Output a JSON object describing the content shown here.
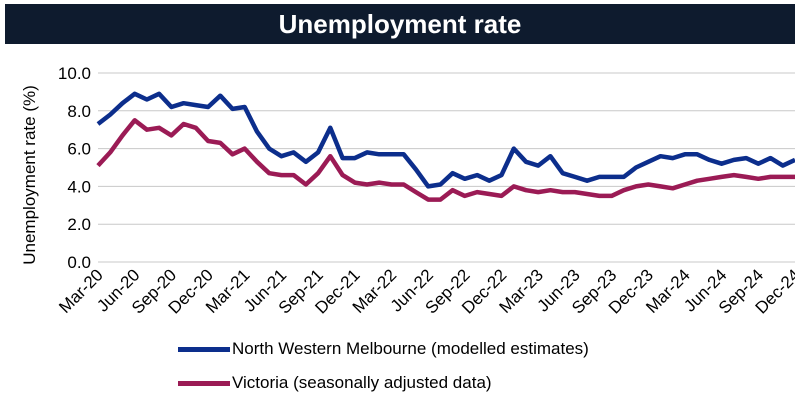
{
  "colors": {
    "title_bg": "#0e1b2e",
    "title_text": "#ffffff",
    "series_nwm": "#0c2e8c",
    "series_vic": "#9b1b55",
    "grid": "#c8c8c8"
  },
  "chart_data": {
    "type": "line",
    "title": "Unemployment rate",
    "ylabel": "Unemployment rate (%)",
    "xlabel": "",
    "ylim": [
      0,
      10
    ],
    "yticks": [
      "0.0",
      "2.0",
      "4.0",
      "6.0",
      "8.0",
      "10.0"
    ],
    "grid": "horizontal",
    "legend_position": "bottom",
    "x_tick_labels": [
      "Mar-20",
      "Jun-20",
      "Sep-20",
      "Dec-20",
      "Mar-21",
      "Jun-21",
      "Sep-21",
      "Dec-21",
      "Mar-22",
      "Jun-22",
      "Sep-22",
      "Dec-22",
      "Mar-23",
      "Jun-23",
      "Sep-23",
      "Dec-23",
      "Mar-24",
      "Jun-24",
      "Sep-24",
      "Dec-24"
    ],
    "x": [
      "Mar-20",
      "Apr-20",
      "May-20",
      "Jun-20",
      "Jul-20",
      "Aug-20",
      "Sep-20",
      "Oct-20",
      "Nov-20",
      "Dec-20",
      "Jan-21",
      "Feb-21",
      "Mar-21",
      "Apr-21",
      "May-21",
      "Jun-21",
      "Jul-21",
      "Aug-21",
      "Sep-21",
      "Oct-21",
      "Nov-21",
      "Dec-21",
      "Jan-22",
      "Feb-22",
      "Mar-22",
      "Apr-22",
      "May-22",
      "Jun-22",
      "Jul-22",
      "Aug-22",
      "Sep-22",
      "Oct-22",
      "Nov-22",
      "Dec-22",
      "Jan-23",
      "Feb-23",
      "Mar-23",
      "Apr-23",
      "May-23",
      "Jun-23",
      "Jul-23",
      "Aug-23",
      "Sep-23",
      "Oct-23",
      "Nov-23",
      "Dec-23",
      "Jan-24",
      "Feb-24",
      "Mar-24",
      "Apr-24",
      "May-24",
      "Jun-24",
      "Jul-24",
      "Aug-24",
      "Sep-24",
      "Oct-24",
      "Nov-24",
      "Dec-24"
    ],
    "series": [
      {
        "name": "North Western Melbourne (modelled estimates)",
        "color": "#0c2e8c",
        "values": [
          7.3,
          7.8,
          8.4,
          8.9,
          8.6,
          8.9,
          8.2,
          8.4,
          8.3,
          8.2,
          8.8,
          8.1,
          8.2,
          6.9,
          6.0,
          5.6,
          5.8,
          5.3,
          5.8,
          7.1,
          5.5,
          5.5,
          5.8,
          5.7,
          5.7,
          5.7,
          4.9,
          4.0,
          4.1,
          4.7,
          4.4,
          4.6,
          4.3,
          4.6,
          6.0,
          5.3,
          5.1,
          5.6,
          4.7,
          4.5,
          4.3,
          4.5,
          4.5,
          4.5,
          5.0,
          5.3,
          5.6,
          5.5,
          5.7,
          5.7,
          5.4,
          5.2,
          5.4,
          5.5,
          5.2,
          5.5,
          5.1,
          5.4
        ]
      },
      {
        "name": "Victoria (seasonally adjusted data)",
        "color": "#9b1b55",
        "values": [
          5.1,
          5.8,
          6.7,
          7.5,
          7.0,
          7.1,
          6.7,
          7.3,
          7.1,
          6.4,
          6.3,
          5.7,
          6.0,
          5.3,
          4.7,
          4.6,
          4.6,
          4.1,
          4.7,
          5.6,
          4.6,
          4.2,
          4.1,
          4.2,
          4.1,
          4.1,
          3.7,
          3.3,
          3.3,
          3.8,
          3.5,
          3.7,
          3.6,
          3.5,
          4.0,
          3.8,
          3.7,
          3.8,
          3.7,
          3.7,
          3.6,
          3.5,
          3.5,
          3.8,
          4.0,
          4.1,
          4.0,
          3.9,
          4.1,
          4.3,
          4.4,
          4.5,
          4.6,
          4.5,
          4.4,
          4.5,
          4.5,
          4.5
        ]
      }
    ]
  }
}
